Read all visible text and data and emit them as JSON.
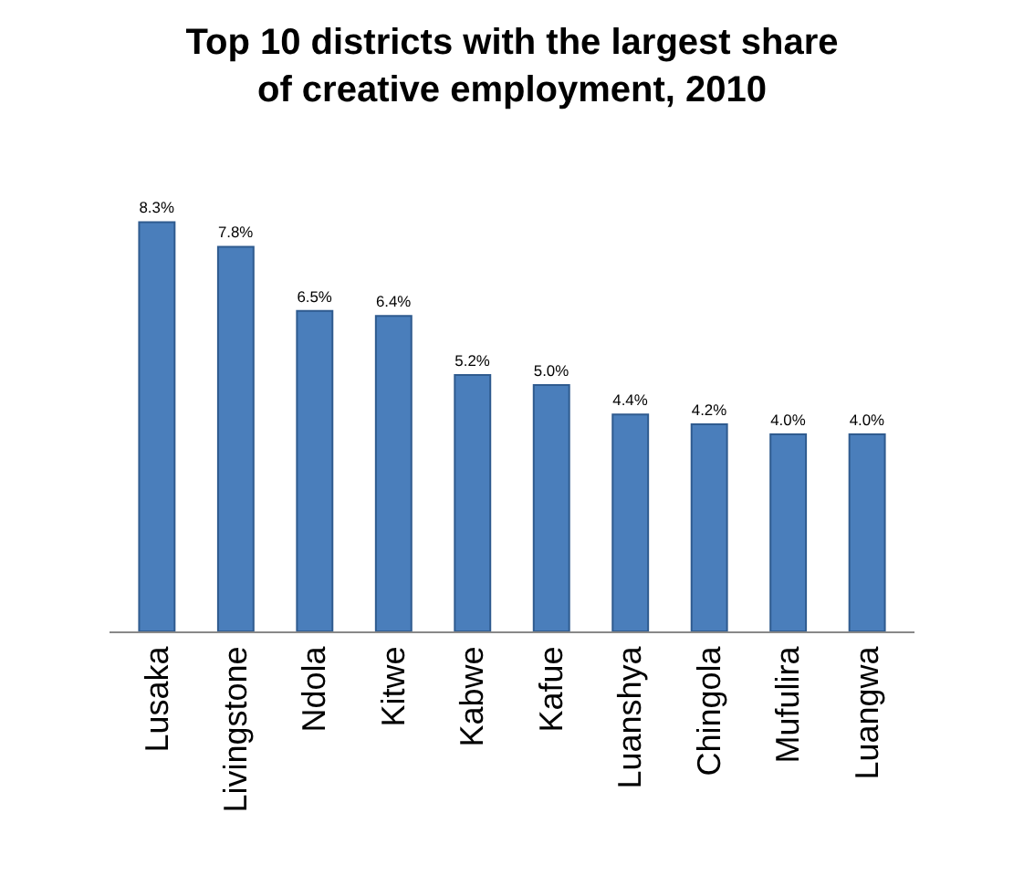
{
  "chart_data": {
    "type": "bar",
    "title": "Top 10 districts with the largest share\nof creative employment, 2010",
    "categories": [
      "Lusaka",
      "Livingstone",
      "Ndola",
      "Kitwe",
      "Kabwe",
      "Kafue",
      "Luanshya",
      "Chingola",
      "Mufulira",
      "Luangwa"
    ],
    "values": [
      8.3,
      7.8,
      6.5,
      6.4,
      5.2,
      5.0,
      4.4,
      4.2,
      4.0,
      4.0
    ],
    "value_labels": [
      "8.3%",
      "7.8%",
      "6.5%",
      "6.4%",
      "5.2%",
      "5.0%",
      "4.4%",
      "4.2%",
      "4.0%",
      "4.0%"
    ],
    "color": "#4a7ebb",
    "legend": false
  }
}
